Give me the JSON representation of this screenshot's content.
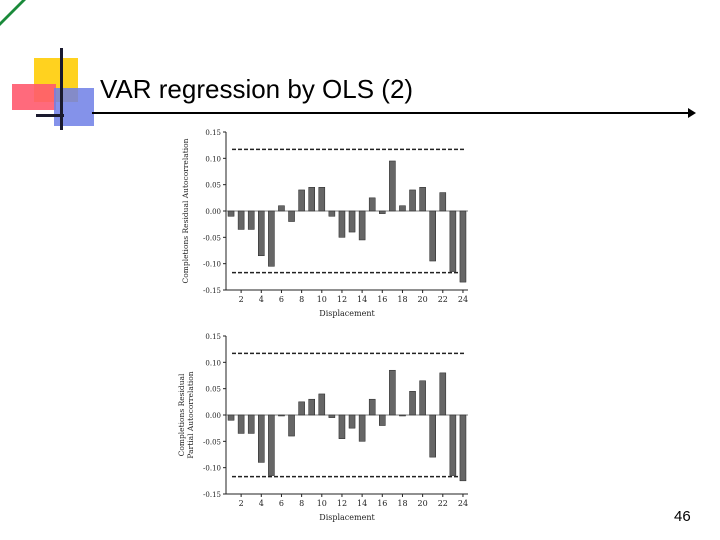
{
  "slide": {
    "title": "VAR regression by OLS (2)",
    "page_number": "46"
  },
  "colors": {
    "accent_green": "#1a8a3a",
    "accent_yellow": "#ffd21f",
    "accent_red": "#ff5a6e",
    "accent_blue": "#6f7fe6",
    "bar_fill": "#666666"
  },
  "chart_data": [
    {
      "type": "bar",
      "title": "",
      "ylabel": "Completions Residual Autocorrelation",
      "xlabel": "Displacement",
      "x": [
        1,
        2,
        3,
        4,
        5,
        6,
        7,
        8,
        9,
        10,
        11,
        12,
        13,
        14,
        15,
        16,
        17,
        18,
        19,
        20,
        21,
        22,
        23,
        24
      ],
      "x_tick_labels": [
        "2",
        "4",
        "6",
        "8",
        "10",
        "12",
        "14",
        "16",
        "18",
        "20",
        "22",
        "24"
      ],
      "values": [
        -0.01,
        -0.035,
        -0.035,
        -0.085,
        -0.105,
        0.01,
        -0.02,
        0.04,
        0.045,
        0.045,
        -0.01,
        -0.05,
        -0.04,
        -0.055,
        0.025,
        -0.005,
        0.095,
        0.01,
        0.04,
        0.045,
        -0.095,
        0.035,
        -0.115,
        -0.135
      ],
      "y_tick_labels": [
        "0.15",
        "0.10",
        "0.05",
        "0.00",
        "-0.05",
        "-0.10",
        "-0.15"
      ],
      "y_ticks": [
        0.15,
        0.1,
        0.05,
        0.0,
        -0.05,
        -0.1,
        -0.15
      ],
      "ylim": [
        -0.15,
        0.15
      ],
      "confidence_band": [
        -0.117,
        0.117
      ]
    },
    {
      "type": "bar",
      "title": "",
      "ylabel": "Completions Residual Partial Autocorrelation",
      "ylabel_lines": [
        "Completions Residual",
        "Partial Autocorrelation"
      ],
      "xlabel": "Displacement",
      "x": [
        1,
        2,
        3,
        4,
        5,
        6,
        7,
        8,
        9,
        10,
        11,
        12,
        13,
        14,
        15,
        16,
        17,
        18,
        19,
        20,
        21,
        22,
        23,
        24
      ],
      "x_tick_labels": [
        "2",
        "4",
        "6",
        "8",
        "10",
        "12",
        "14",
        "16",
        "18",
        "20",
        "22",
        "24"
      ],
      "values": [
        -0.01,
        -0.035,
        -0.035,
        -0.09,
        -0.115,
        0.0,
        -0.04,
        0.025,
        0.03,
        0.04,
        -0.005,
        -0.045,
        -0.025,
        -0.05,
        0.03,
        -0.02,
        0.085,
        0.0,
        0.045,
        0.065,
        -0.08,
        0.08,
        -0.115,
        -0.125
      ],
      "y_tick_labels": [
        "0.15",
        "0.10",
        "0.05",
        "0.00",
        "-0.05",
        "-0.10",
        "-0.15"
      ],
      "y_ticks": [
        0.15,
        0.1,
        0.05,
        0.0,
        -0.05,
        -0.1,
        -0.15
      ],
      "ylim": [
        -0.15,
        0.15
      ],
      "confidence_band": [
        -0.117,
        0.117
      ]
    }
  ]
}
